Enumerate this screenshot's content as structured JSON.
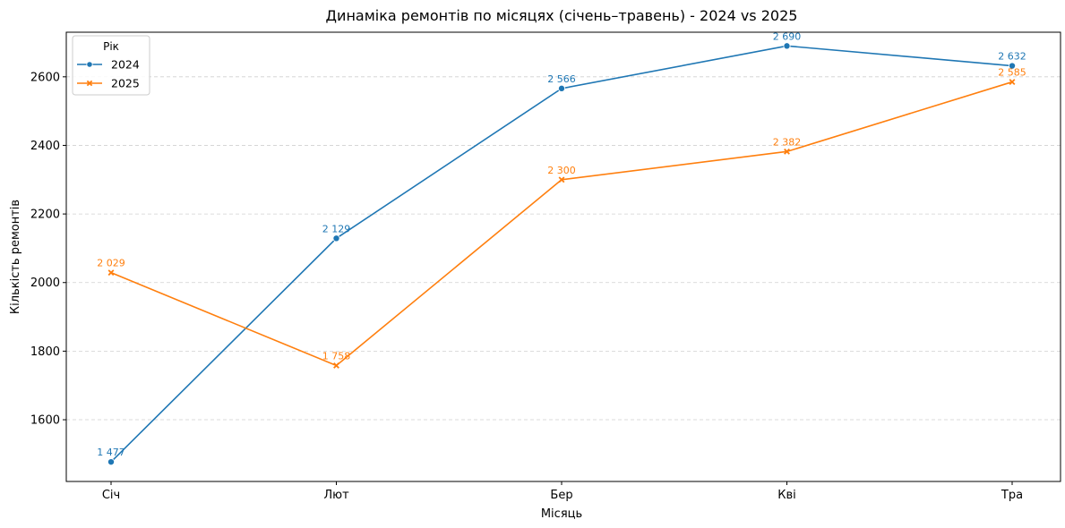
{
  "chart_data": {
    "type": "line",
    "title": "Динаміка ремонтів по місяцях (січень–травень) - 2024 vs 2025",
    "xlabel": "Місяць",
    "ylabel": "Кількість ремонтів",
    "categories": [
      "Січ",
      "Лют",
      "Бер",
      "Кві",
      "Тра"
    ],
    "ylim": [
      1420,
      2730
    ],
    "yticks": [
      1600,
      1800,
      2000,
      2200,
      2400,
      2600
    ],
    "grid": "horizontal dashed",
    "legend": {
      "title": "Рік",
      "placement": "top-left"
    },
    "series": [
      {
        "name": "2024",
        "color": "#1f77b4",
        "marker": "circle",
        "values": [
          1477,
          2129,
          2566,
          2690,
          2632
        ],
        "labels": [
          "1 477",
          "2 129",
          "2 566",
          "2 690",
          "2 632"
        ]
      },
      {
        "name": "2025",
        "color": "#ff7f0e",
        "marker": "x",
        "values": [
          2029,
          1758,
          2300,
          2382,
          2585
        ],
        "labels": [
          "2 029",
          "1 758",
          "2 300",
          "2 382",
          "2 585"
        ]
      }
    ]
  }
}
